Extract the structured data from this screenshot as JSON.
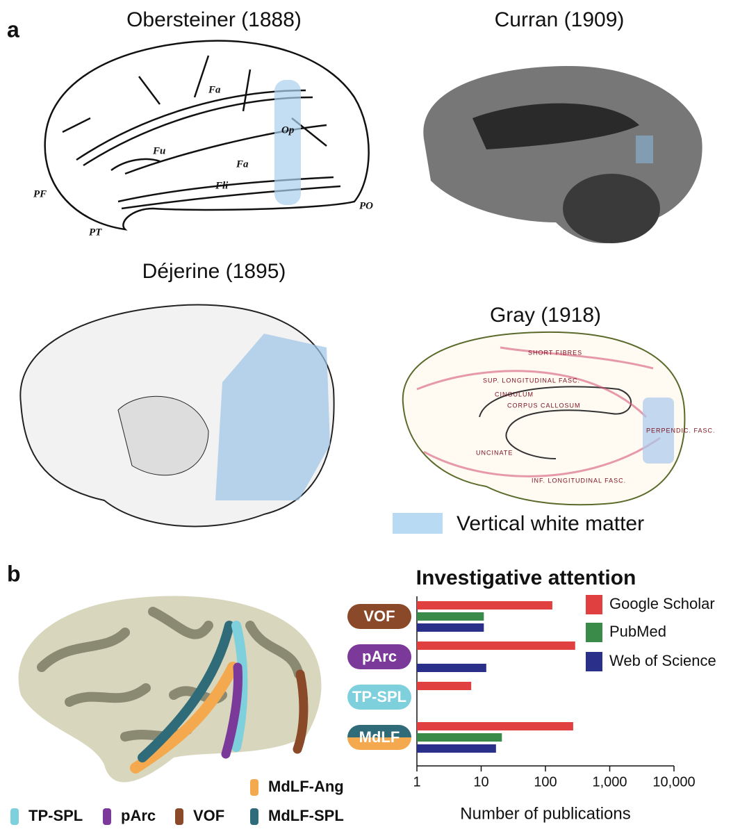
{
  "figure": {
    "panel_a": {
      "label": "a",
      "images": [
        {
          "title": "Obersteiner (1888)",
          "labels": [
            "Fa",
            "Fu",
            "Fa",
            "Op",
            "Fli",
            "PF",
            "PT",
            "PO"
          ]
        },
        {
          "title": "Curran (1909)"
        },
        {
          "title": "Déjerine (1895)"
        },
        {
          "title": "Gray (1918)",
          "labels": [
            "SHORT FIBRES",
            "SUP. LONGITUDINAL FASC.",
            "CINGULUM",
            "CORPUS CALLOSUM",
            "UNCINATE",
            "INF. LONGITUDINAL FASC.",
            "PERPENDIC. FASC."
          ]
        }
      ],
      "legend": "Vertical white matter"
    },
    "panel_b": {
      "label": "b",
      "tracts": [
        {
          "name": "MdLF-Ang",
          "color": "#f4a94e"
        },
        {
          "name": "TP-SPL",
          "color": "#7fd0dd"
        },
        {
          "name": "pArc",
          "color": "#7b3a9a"
        },
        {
          "name": "VOF",
          "color": "#8a4a2a"
        },
        {
          "name": "MdLF-SPL",
          "color": "#2f6b78"
        }
      ]
    }
  },
  "chart_data": {
    "type": "bar",
    "orientation": "horizontal",
    "title": "Investigative attention",
    "categories": [
      "VOF",
      "pArc",
      "TP-SPL",
      "MdLF"
    ],
    "category_colors": [
      "#8a4a2a",
      "#7b3a9a",
      "#7fd0dd",
      [
        "#2f6b78",
        "#f4a94e"
      ]
    ],
    "series": [
      {
        "name": "Google Scholar",
        "color": "#e0403f",
        "values": [
          128,
          290,
          7,
          270
        ]
      },
      {
        "name": "PubMed",
        "color": "#3a8a4a",
        "values": [
          11,
          null,
          null,
          21
        ]
      },
      {
        "name": "Web of Science",
        "color": "#2a2f8a",
        "values": [
          11,
          12,
          null,
          17
        ]
      }
    ],
    "xscale": "log",
    "xlim": [
      1,
      10000
    ],
    "xticks": [
      1,
      10,
      100,
      {
        "value": 1000,
        "label": "1,000"
      },
      {
        "value": 10000,
        "label": "10,000"
      }
    ],
    "xlabel": "Number of publications",
    "legend": "top-right"
  }
}
